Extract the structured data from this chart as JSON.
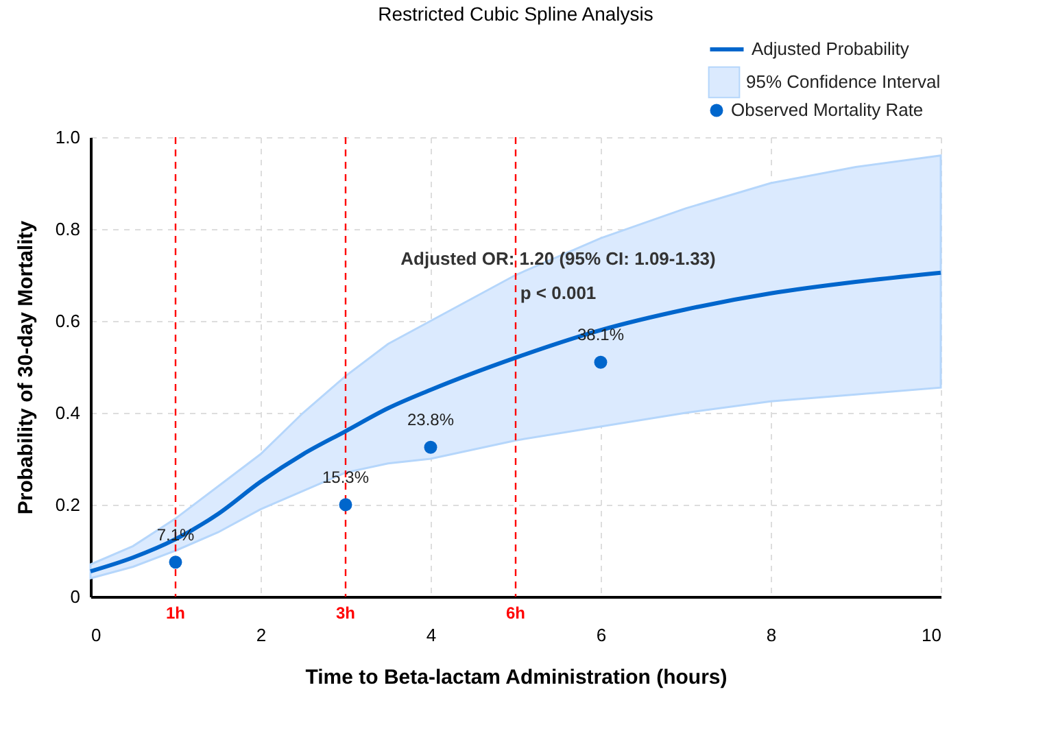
{
  "chart_data": {
    "type": "line",
    "title": "Restricted Cubic Spline Analysis",
    "xlabel": "Time to Beta-lactam Administration (hours)",
    "ylabel": "Probability of 30-day Mortality",
    "xlim": [
      0,
      10
    ],
    "xticks": [
      0,
      2,
      4,
      6,
      8,
      10
    ],
    "ylim": [
      0,
      1.0
    ],
    "yticks": [
      0,
      0.2,
      0.4,
      0.6,
      0.8,
      {
        "value": 1.0,
        "label": "1.0"
      }
    ],
    "grid": true,
    "legend": "top right",
    "series": [
      {
        "name": "Adjusted Probability",
        "color": "#0066cc",
        "x": [
          0,
          0.5,
          1,
          1.5,
          2,
          2.5,
          3,
          3.5,
          4,
          5,
          6,
          7,
          8,
          9,
          10
        ],
        "values": [
          0.055,
          0.085,
          0.125,
          0.18,
          0.25,
          0.31,
          0.36,
          0.41,
          0.45,
          0.52,
          0.58,
          0.625,
          0.66,
          0.685,
          0.705
        ],
        "lower": [
          0.04,
          0.065,
          0.1,
          0.14,
          0.19,
          0.23,
          0.27,
          0.29,
          0.3,
          0.34,
          0.37,
          0.4,
          0.425,
          0.44,
          0.455
        ],
        "upper": [
          0.07,
          0.11,
          0.17,
          0.24,
          0.31,
          0.4,
          0.48,
          0.55,
          0.6,
          0.7,
          0.78,
          0.845,
          0.9,
          0.935,
          0.96
        ]
      },
      {
        "type": "area",
        "name": "95% Confidence Interval",
        "color": "#dbeafe"
      },
      {
        "type": "scatter",
        "name": "Observed Mortality Rate",
        "color": "#0066cc",
        "x": [
          1,
          3,
          4,
          6
        ],
        "values": [
          0.075,
          0.2,
          0.325,
          0.51
        ]
      }
    ],
    "ref_lines": [
      {
        "axis": "x",
        "value": 1,
        "label": "1h",
        "color": "#ff0000",
        "line_style": "dashed"
      },
      {
        "axis": "x",
        "value": 3,
        "label": "3h",
        "color": "#ff0000",
        "line_style": "dashed"
      },
      {
        "axis": "x",
        "value": 5,
        "label": "6h",
        "color": "#ff0000",
        "line_style": "dashed"
      }
    ],
    "annotations": [
      "Adjusted OR: 1.20 (95% CI: 1.09-1.33)",
      "p < 0.001",
      {
        "text": "7.1%",
        "x": 1,
        "y": 0.075
      },
      {
        "text": "15.3%",
        "x": 3,
        "y": 0.2
      },
      {
        "text": "23.8%",
        "x": 4,
        "y": 0.325
      },
      {
        "text": "38.1%",
        "x": 6,
        "y": 0.51
      }
    ]
  }
}
